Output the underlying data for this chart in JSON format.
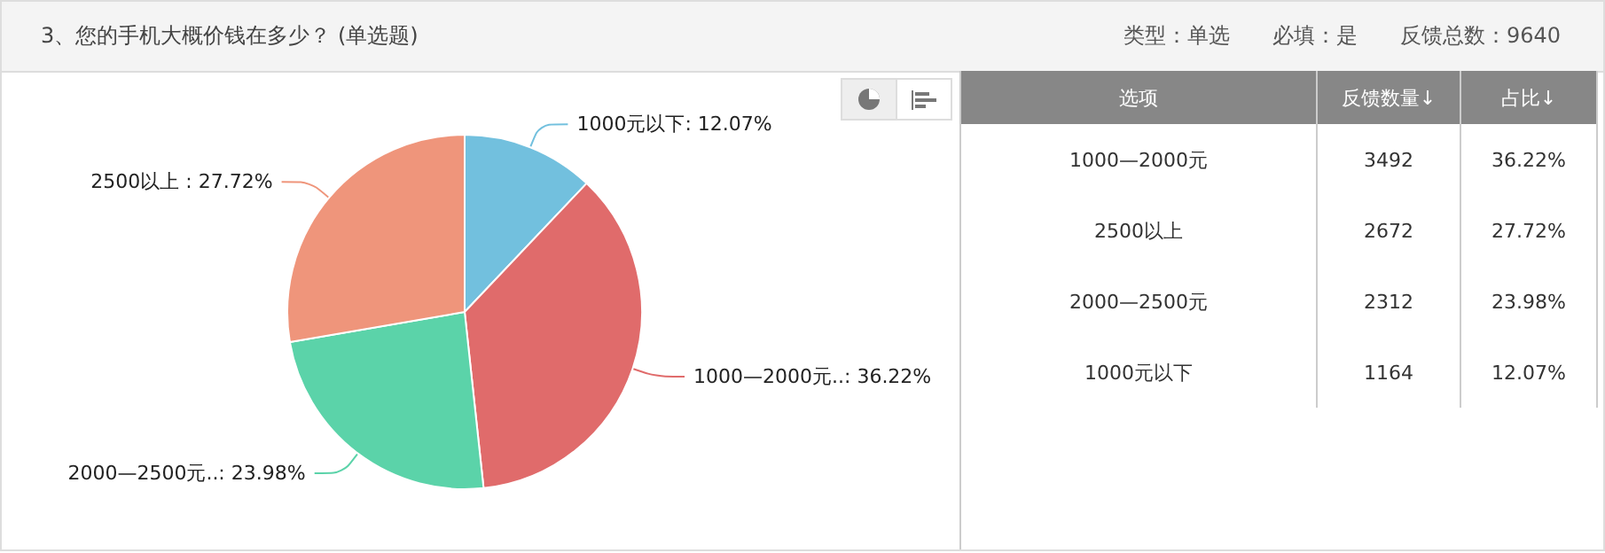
{
  "chart_data": [
    {
      "type": "pie",
      "title": "3、您的手机大概价钱在多少？ (单选题)",
      "annotations": [
        "类型：单选",
        "必填：是",
        "反馈总数：9640"
      ],
      "legend": false,
      "categories": [
        "1000元以下",
        "1000—2000元..",
        "2000—2500元..",
        "2500以上 "
      ],
      "values": [
        12.07,
        36.22,
        23.98,
        27.72
      ],
      "colors": [
        "#72c0de",
        "#e06b6b",
        "#5bd3a9",
        "#ef957b"
      ],
      "value_labels": [
        "12.07%",
        "36.22%",
        "23.98%",
        "27.72%"
      ]
    },
    {
      "type": "other",
      "xlabel": "选项",
      "categories": [
        "1000—2000元",
        "2500以上",
        "2000—2500元",
        "1000元以下"
      ],
      "series": [
        {
          "name": "反馈数量↓",
          "values": [
            3492,
            2672,
            2312,
            1164
          ]
        },
        {
          "name": "占比↓",
          "values": [
            36.22,
            27.72,
            23.98,
            12.07
          ],
          "value_labels": [
            "36.22%",
            "27.72%",
            "23.98%",
            "12.07%"
          ]
        }
      ],
      "data_labels": true
    }
  ]
}
